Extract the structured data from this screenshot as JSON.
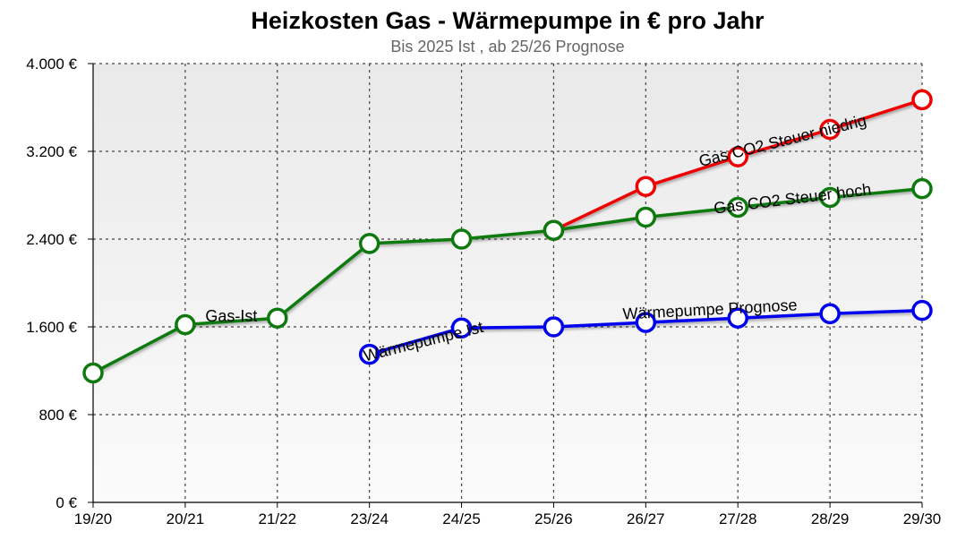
{
  "chart_data": {
    "type": "line",
    "title": "Heizkosten Gas - Wärmepumpe in € pro Jahr",
    "subtitle": "Bis 2025 Ist , ab 25/26 Prognose",
    "categories": [
      "19/20",
      "20/21",
      "21/22",
      "23/24",
      "24/25",
      "25/26",
      "26/27",
      "27/28",
      "28/29",
      "29/30"
    ],
    "ylim": [
      0,
      4000
    ],
    "yticks": [
      0,
      800,
      1600,
      2400,
      3200,
      4000
    ],
    "ytick_labels": [
      "0 €",
      "800 €",
      "1.600 €",
      "2.400 €",
      "3.200 €",
      "4.000 €"
    ],
    "grid": true,
    "series": [
      {
        "name": "Gas CO2 Steuer niedrig",
        "color": "#ee0000",
        "values": [
          null,
          null,
          null,
          null,
          null,
          2480,
          2880,
          3150,
          3400,
          3670
        ]
      },
      {
        "name": "Gas CO2 Steuer hoch",
        "color": "#0e7a0e",
        "values": [
          1180,
          1620,
          1680,
          2360,
          2400,
          2480,
          2600,
          2690,
          2780,
          2860
        ]
      },
      {
        "name": "Wärmepumpe Prognose",
        "color": "#0000ee",
        "values": [
          null,
          null,
          null,
          1350,
          1590,
          1600,
          1640,
          1680,
          1720,
          1750
        ]
      }
    ],
    "annotations": [
      {
        "text": "Gas-Ist",
        "x": 1.5,
        "y": 1650,
        "angle": 0
      },
      {
        "text": "Wärmepumpe Ist",
        "x": 3.6,
        "y": 1420,
        "angle": -14
      },
      {
        "text": "Wärmepumpe Prognose",
        "x": 6.7,
        "y": 1710,
        "angle": -3
      },
      {
        "text": "Gas CO2 Steuer hoch",
        "x": 7.6,
        "y": 2720,
        "angle": -7
      },
      {
        "text": "Gas CO2 Steuer niedrig",
        "x": 7.5,
        "y": 3250,
        "angle": -14
      }
    ]
  }
}
